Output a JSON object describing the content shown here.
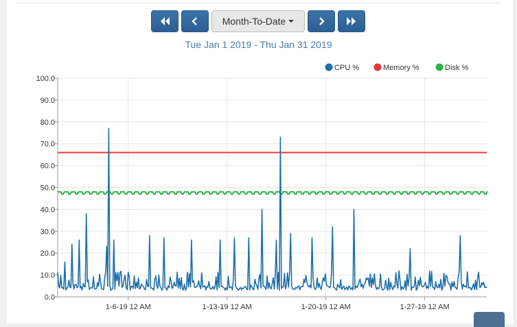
{
  "toolbar": {
    "first_icon": "double-chevron-left-icon",
    "prev_icon": "chevron-left-icon",
    "period_label": "Month-To-Date",
    "next_icon": "chevron-right-icon",
    "last_icon": "double-chevron-right-icon",
    "button_color": "#336699"
  },
  "date_range": "Tue Jan 1 2019 - Thu Jan 31 2019",
  "chart_data": {
    "type": "line",
    "title": "",
    "xlabel": "",
    "ylabel": "",
    "ylim": [
      0,
      100
    ],
    "xlim": [
      "2019-01-01",
      "2019-01-31"
    ],
    "y_ticks": [
      "0.0",
      "10.0",
      "20.0",
      "30.0",
      "40.0",
      "50.0",
      "60.0",
      "70.0",
      "80.0",
      "90.0",
      "100.0"
    ],
    "x_ticks": [
      {
        "date": "2019-01-06",
        "label": "1-6-19 12 AM"
      },
      {
        "date": "2019-01-13",
        "label": "1-13-19 12 AM"
      },
      {
        "date": "2019-01-20",
        "label": "1-20-19 12 AM"
      },
      {
        "date": "2019-01-27",
        "label": "1-27-19 12 AM"
      }
    ],
    "grid": true,
    "legend_position": "top-right",
    "series": [
      {
        "name": "CPU %",
        "color": "#1f6fa8",
        "baseline": 3,
        "noise_max": 12,
        "spikes": [
          {
            "date": "2019-01-01T12:00",
            "value": 16
          },
          {
            "date": "2019-01-02T00:00",
            "value": 24
          },
          {
            "date": "2019-01-02T12:00",
            "value": 26
          },
          {
            "date": "2019-01-03T00:00",
            "value": 38
          },
          {
            "date": "2019-01-04T12:00",
            "value": 23
          },
          {
            "date": "2019-01-04T14:00",
            "value": 77
          },
          {
            "date": "2019-01-05T00:00",
            "value": 26
          },
          {
            "date": "2019-01-07T12:00",
            "value": 28
          },
          {
            "date": "2019-01-08T12:00",
            "value": 27
          },
          {
            "date": "2019-01-10T12:00",
            "value": 26
          },
          {
            "date": "2019-01-12T12:00",
            "value": 26
          },
          {
            "date": "2019-01-13T12:00",
            "value": 27
          },
          {
            "date": "2019-01-14T12:00",
            "value": 27
          },
          {
            "date": "2019-01-15T12:00",
            "value": 40
          },
          {
            "date": "2019-01-16T12:00",
            "value": 26
          },
          {
            "date": "2019-01-16T18:00",
            "value": 73
          },
          {
            "date": "2019-01-17T12:00",
            "value": 29
          },
          {
            "date": "2019-01-19T00:00",
            "value": 27
          },
          {
            "date": "2019-01-20T12:00",
            "value": 32
          },
          {
            "date": "2019-01-22T00:00",
            "value": 40
          },
          {
            "date": "2019-01-26T00:00",
            "value": 22
          },
          {
            "date": "2019-01-29T12:00",
            "value": 28
          }
        ]
      },
      {
        "name": "Memory %",
        "color": "#e8343b",
        "value": 66
      },
      {
        "name": "Disk %",
        "color": "#2db34a",
        "value": 48,
        "dip_value": 47
      }
    ]
  }
}
